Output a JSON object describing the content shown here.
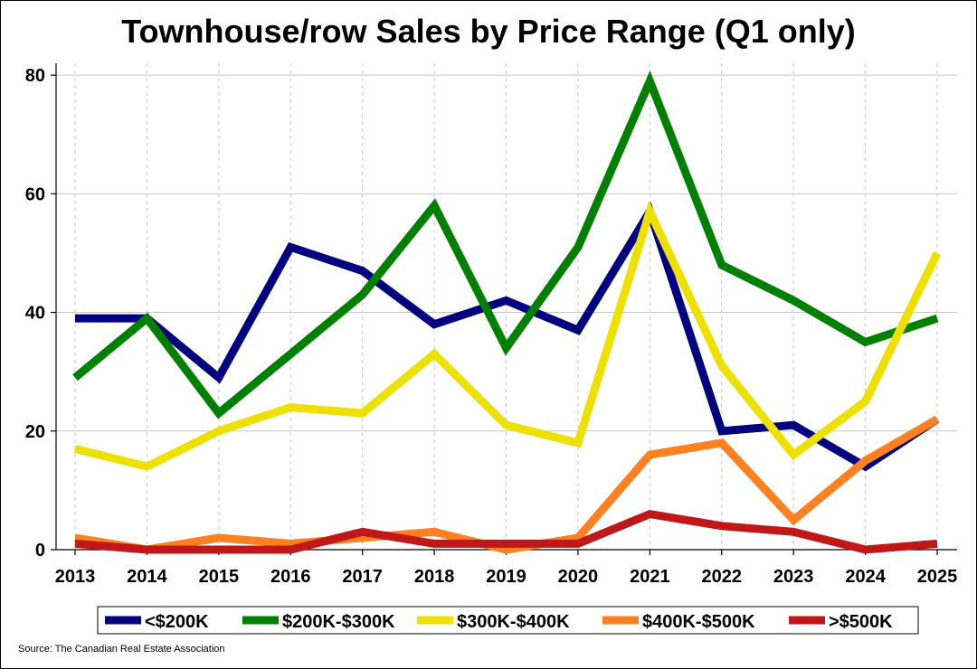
{
  "title": "Townhouse/row Sales by Price Range (Q1 only)",
  "source": "Source: The Canadian Real Estate Association",
  "chart_data": {
    "type": "line",
    "title": "Townhouse/row Sales by Price Range (Q1 only)",
    "xlabel": "",
    "ylabel": "",
    "x": [
      "2013",
      "2014",
      "2015",
      "2016",
      "2017",
      "2018",
      "2019",
      "2020",
      "2021",
      "2022",
      "2023",
      "2024",
      "2025"
    ],
    "ylim": [
      0,
      82
    ],
    "yticks": [
      0,
      20,
      40,
      60,
      80
    ],
    "grid": true,
    "legend_position": "bottom",
    "series": [
      {
        "name": "<$200K",
        "color": "#000080",
        "values": [
          39,
          39,
          29,
          51,
          47,
          38,
          42,
          37,
          57,
          20,
          21,
          14,
          22
        ]
      },
      {
        "name": "$200K-$300K",
        "color": "#008000",
        "values": [
          29,
          39,
          23,
          33,
          43,
          58,
          34,
          51,
          79,
          48,
          42,
          35,
          39
        ]
      },
      {
        "name": "$300K-$400K",
        "color": "#eee000",
        "values": [
          17,
          14,
          20,
          24,
          23,
          33,
          21,
          18,
          57,
          31,
          16,
          25,
          50
        ]
      },
      {
        "name": "$400K-$500K",
        "color": "#ff8020",
        "values": [
          2,
          0,
          2,
          1,
          2,
          3,
          0,
          2,
          16,
          18,
          5,
          15,
          22
        ]
      },
      {
        "name": ">$500K",
        "color": "#c01818",
        "values": [
          1,
          0,
          0,
          0,
          3,
          1,
          1,
          1,
          6,
          4,
          3,
          0,
          1
        ]
      }
    ]
  }
}
